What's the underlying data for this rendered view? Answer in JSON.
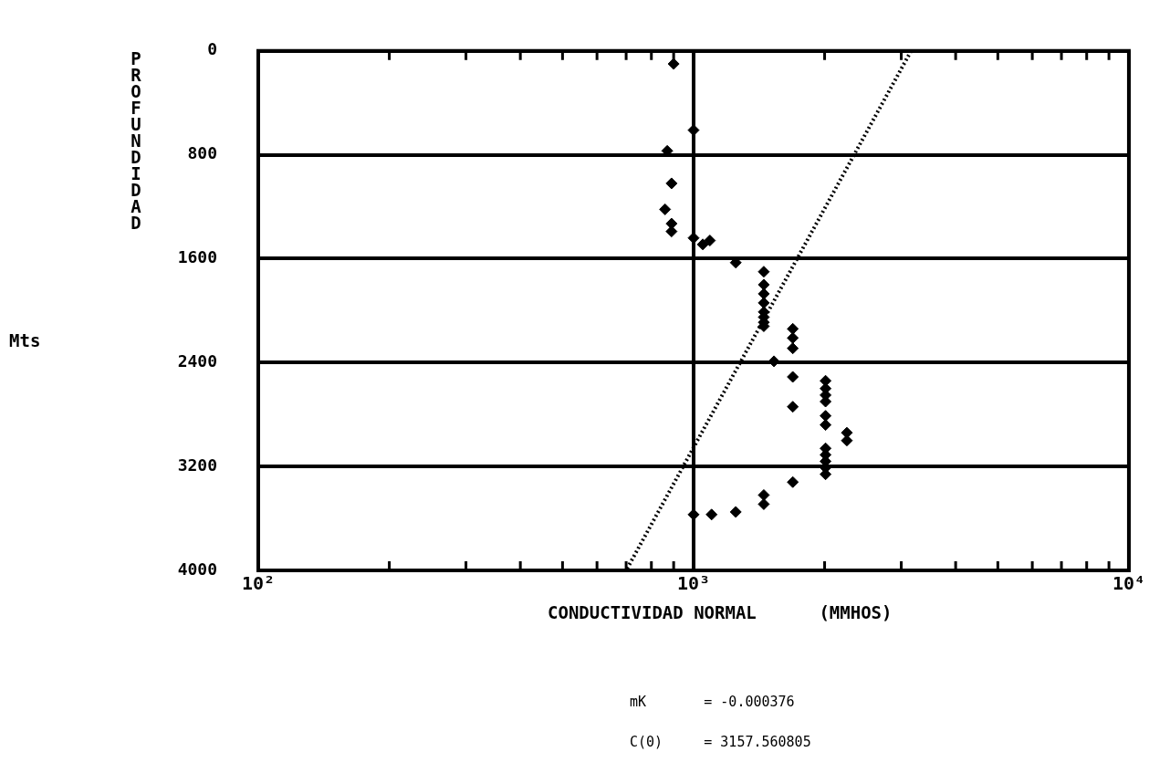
{
  "chart_data": {
    "type": "scatter",
    "xlabel": "CONDUCTIVIDAD NORMAL      (MMHOS)",
    "ylabel": "PROFUNDIDAD",
    "log": "x",
    "xlim": [
      100,
      10000
    ],
    "xticks": [
      {
        "value": 100,
        "label": "10²"
      },
      {
        "value": 200,
        "label": null
      },
      {
        "value": 300,
        "label": null
      },
      {
        "value": 400,
        "label": null
      },
      {
        "value": 500,
        "label": null
      },
      {
        "value": 600,
        "label": null
      },
      {
        "value": 700,
        "label": null
      },
      {
        "value": 800,
        "label": null
      },
      {
        "value": 900,
        "label": null
      },
      {
        "value": 1000,
        "label": "10³"
      },
      {
        "value": 2000,
        "label": null
      },
      {
        "value": 3000,
        "label": null
      },
      {
        "value": 4000,
        "label": null
      },
      {
        "value": 5000,
        "label": null
      },
      {
        "value": 6000,
        "label": null
      },
      {
        "value": 7000,
        "label": null
      },
      {
        "value": 8000,
        "label": null
      },
      {
        "value": 9000,
        "label": null
      },
      {
        "value": 10000,
        "label": "10⁴"
      }
    ],
    "ylim": [
      4000,
      0
    ],
    "yticks": [
      0,
      800,
      1600,
      2400,
      3200,
      4000
    ],
    "grid": true,
    "series": [
      {
        "marker": "diamond",
        "color": "#000000",
        "x": [
          900,
          1000,
          870,
          890,
          860,
          890,
          890,
          1000,
          1050,
          1090,
          1250,
          1450,
          1450,
          1450,
          1450,
          1450,
          1450,
          1450,
          1450,
          1690,
          1690,
          1690,
          1530,
          1690,
          1690,
          2010,
          2010,
          2010,
          2010,
          2010,
          2010,
          2250,
          2250,
          2010,
          2010,
          2010,
          2010,
          2010,
          1690,
          1450,
          1450,
          1250,
          1100,
          1000
        ],
        "values": [
          100,
          610,
          770,
          1020,
          1220,
          1330,
          1390,
          1440,
          1490,
          1460,
          1630,
          1700,
          1800,
          1870,
          1940,
          2010,
          2050,
          2090,
          2120,
          2140,
          2210,
          2290,
          2390,
          2510,
          2740,
          2540,
          2600,
          2650,
          2700,
          2810,
          2880,
          2940,
          3000,
          3060,
          3110,
          3160,
          3210,
          3260,
          3320,
          3420,
          3490,
          3550,
          3570,
          3570
        ]
      },
      {
        "type": "line",
        "color": "#000000",
        "line_style": "dotted",
        "x": [
          3160,
          700
        ],
        "values": [
          0,
          4000
        ]
      }
    ],
    "annotations": [
      "Mts",
      "mK       = -0.000376",
      "C(0)     = 3157.560805"
    ]
  }
}
